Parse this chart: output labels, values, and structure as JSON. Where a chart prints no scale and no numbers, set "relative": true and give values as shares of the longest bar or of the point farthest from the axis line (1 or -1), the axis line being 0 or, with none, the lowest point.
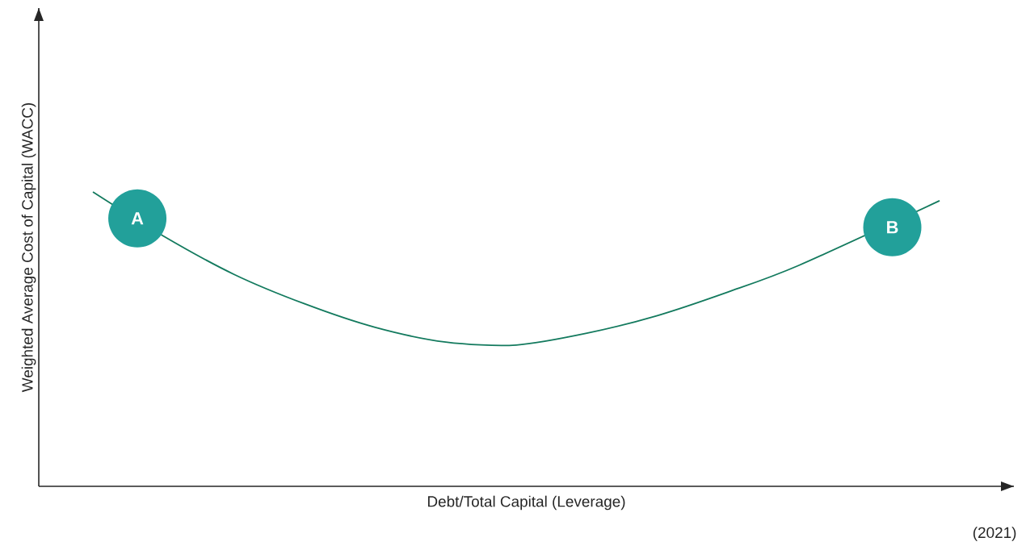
{
  "chart_data": {
    "type": "line",
    "relative": true,
    "xlabel": "Debt/Total Capital (Leverage)",
    "ylabel": "Weighted Average Cost of Capital (WACC)",
    "categories": [
      null,
      null,
      null,
      null,
      null,
      null,
      null,
      null,
      null,
      null,
      null,
      null,
      null
    ],
    "series": [
      {
        "color": "#137a5e",
        "values": [
          1.0,
          0.85,
          0.72,
          0.62,
          0.54,
          0.49,
          0.48,
          0.52,
          0.58,
          0.66,
          0.75,
          null,
          0.97
        ]
      }
    ],
    "annotations": [
      {
        "text": "A",
        "y": 0.91
      },
      {
        "text": "B",
        "y": 0.88
      },
      "(2021)"
    ],
    "marker": "none",
    "line_style": "solid"
  }
}
